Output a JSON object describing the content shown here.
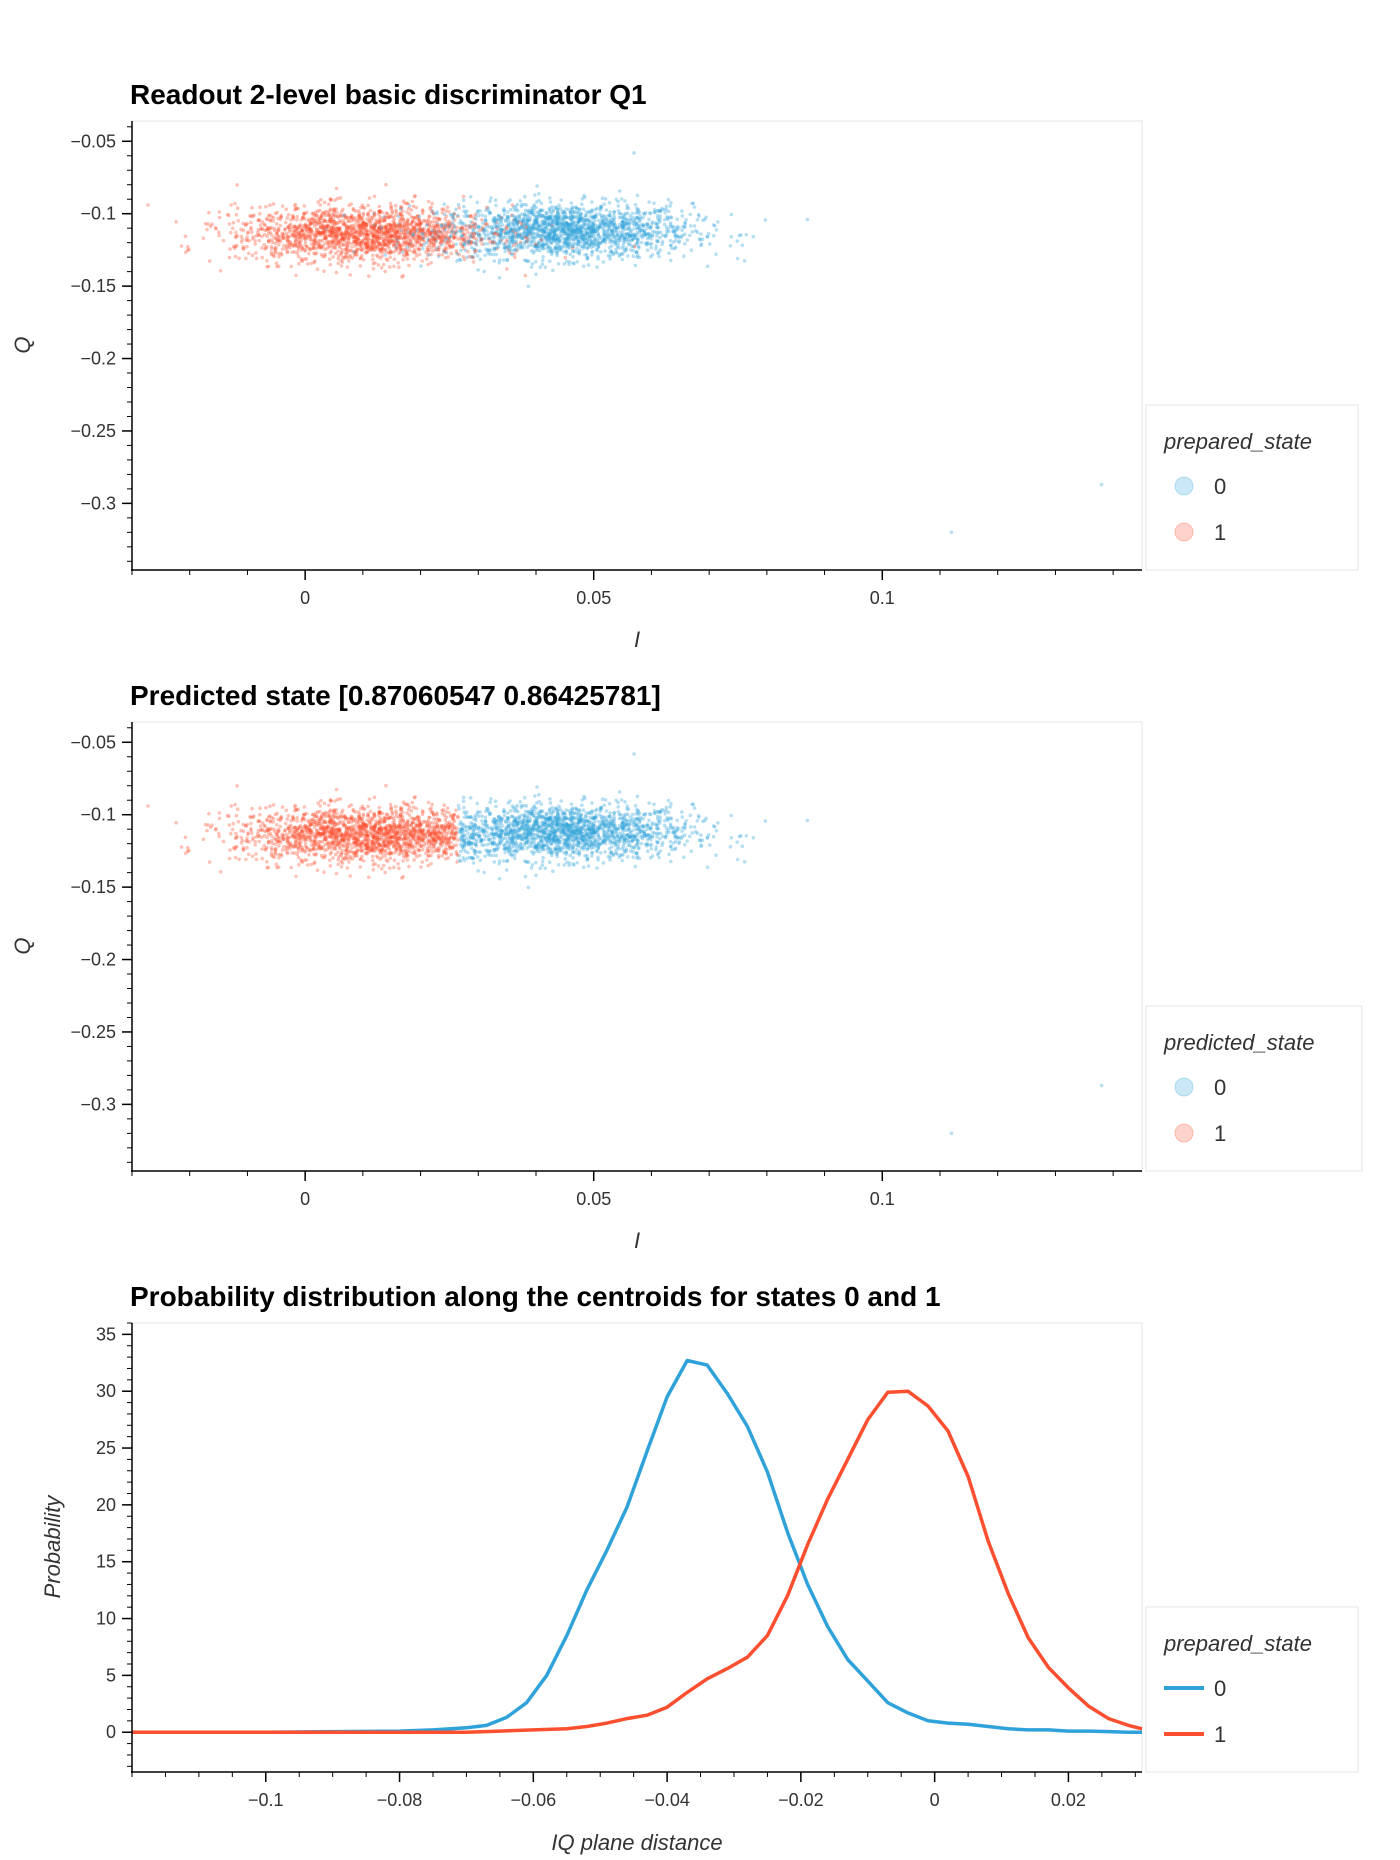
{
  "colors": {
    "state0": "#30a2da",
    "state1": "#fc4f30"
  },
  "chart_data": [
    {
      "type": "scatter",
      "title": "Readout 2-level basic discriminator Q1",
      "xlabel": "I",
      "ylabel": "Q",
      "xlim": [
        -0.03,
        0.145
      ],
      "ylim": [
        -0.346,
        -0.036
      ],
      "xticks": [
        0,
        0.05,
        0.1
      ],
      "xtick_labels": [
        "0",
        "0.05",
        "0.1"
      ],
      "yticks": [
        -0.05,
        -0.1,
        -0.15,
        -0.2,
        -0.25,
        -0.3
      ],
      "ytick_labels": [
        "−0.05",
        "−0.1",
        "−0.15",
        "−0.2",
        "−0.25",
        "−0.3"
      ],
      "legend_title": "prepared_state",
      "legend": [
        "0",
        "1"
      ],
      "legend_position": "right",
      "series": [
        {
          "name": "0",
          "center": [
            0.045,
            -0.112
          ],
          "std": [
            0.011,
            0.0095
          ],
          "count": 1800,
          "outliers": [
            [
              0.057,
              -0.058
            ],
            [
              0.087,
              -0.104
            ],
            [
              0.112,
              -0.32
            ],
            [
              0.138,
              -0.287
            ]
          ]
        },
        {
          "name": "1",
          "center": [
            0.01,
            -0.114
          ],
          "std": [
            0.011,
            0.0095
          ],
          "count": 1800
        }
      ]
    },
    {
      "type": "scatter",
      "title": "Predicted state [0.87060547 0.86425781]",
      "xlabel": "I",
      "ylabel": "Q",
      "xlim": [
        -0.03,
        0.145
      ],
      "ylim": [
        -0.346,
        -0.036
      ],
      "xticks": [
        0,
        0.05,
        0.1
      ],
      "xtick_labels": [
        "0",
        "0.05",
        "0.1"
      ],
      "yticks": [
        -0.05,
        -0.1,
        -0.15,
        -0.2,
        -0.25,
        -0.3
      ],
      "ytick_labels": [
        "−0.05",
        "−0.1",
        "−0.15",
        "−0.2",
        "−0.25",
        "−0.3"
      ],
      "legend_title": "predicted_state",
      "legend": [
        "0",
        "1"
      ],
      "legend_position": "right",
      "decision_boundary_I": 0.0265
    },
    {
      "type": "line",
      "title": "Probability distribution along the centroids for states 0 and 1",
      "xlabel": "IQ plane distance",
      "ylabel": "Probability",
      "xlim": [
        -0.12,
        0.031
      ],
      "ylim": [
        -3.5,
        36
      ],
      "xticks": [
        -0.1,
        -0.08,
        -0.06,
        -0.04,
        -0.02,
        0,
        0.02
      ],
      "xtick_labels": [
        "−0.1",
        "−0.08",
        "−0.06",
        "−0.04",
        "−0.02",
        "0",
        "0.02"
      ],
      "yticks": [
        0,
        5,
        10,
        15,
        20,
        25,
        30,
        35
      ],
      "ytick_labels": [
        "0",
        "5",
        "10",
        "15",
        "20",
        "25",
        "30",
        "35"
      ],
      "legend_title": "prepared_state",
      "legend": [
        "0",
        "1"
      ],
      "legend_position": "right",
      "series": [
        {
          "name": "0",
          "x": [
            -0.12,
            -0.11,
            -0.1,
            -0.09,
            -0.08,
            -0.075,
            -0.07,
            -0.067,
            -0.064,
            -0.061,
            -0.058,
            -0.055,
            -0.052,
            -0.049,
            -0.046,
            -0.043,
            -0.04,
            -0.037,
            -0.034,
            -0.031,
            -0.028,
            -0.025,
            -0.022,
            -0.019,
            -0.016,
            -0.013,
            -0.01,
            -0.007,
            -0.004,
            -0.001,
            0.002,
            0.005,
            0.008,
            0.011,
            0.014,
            0.017,
            0.02,
            0.023,
            0.026,
            0.029,
            0.031
          ],
          "y": [
            0,
            0,
            0,
            0.05,
            0.1,
            0.2,
            0.4,
            0.6,
            1.3,
            2.6,
            5.0,
            8.5,
            12.5,
            16.0,
            19.8,
            24.7,
            29.5,
            32.7,
            32.3,
            29.8,
            26.9,
            22.9,
            17.6,
            13.0,
            9.3,
            6.4,
            4.5,
            2.6,
            1.7,
            1.0,
            0.8,
            0.7,
            0.5,
            0.3,
            0.2,
            0.2,
            0.1,
            0.1,
            0.05,
            0,
            0
          ]
        },
        {
          "name": "1",
          "x": [
            -0.12,
            -0.1,
            -0.08,
            -0.07,
            -0.065,
            -0.06,
            -0.055,
            -0.052,
            -0.049,
            -0.046,
            -0.043,
            -0.04,
            -0.037,
            -0.034,
            -0.031,
            -0.028,
            -0.025,
            -0.022,
            -0.019,
            -0.016,
            -0.013,
            -0.01,
            -0.007,
            -0.004,
            -0.001,
            0.002,
            0.005,
            0.008,
            0.011,
            0.014,
            0.017,
            0.02,
            0.023,
            0.026,
            0.029,
            0.031
          ],
          "y": [
            0,
            0,
            0,
            0,
            0.1,
            0.2,
            0.3,
            0.5,
            0.8,
            1.2,
            1.5,
            2.2,
            3.5,
            4.7,
            5.6,
            6.6,
            8.5,
            12.0,
            16.5,
            20.5,
            24.0,
            27.5,
            29.9,
            30.0,
            28.7,
            26.5,
            22.5,
            16.8,
            12.2,
            8.3,
            5.7,
            3.9,
            2.3,
            1.2,
            0.6,
            0.3
          ]
        }
      ]
    }
  ]
}
